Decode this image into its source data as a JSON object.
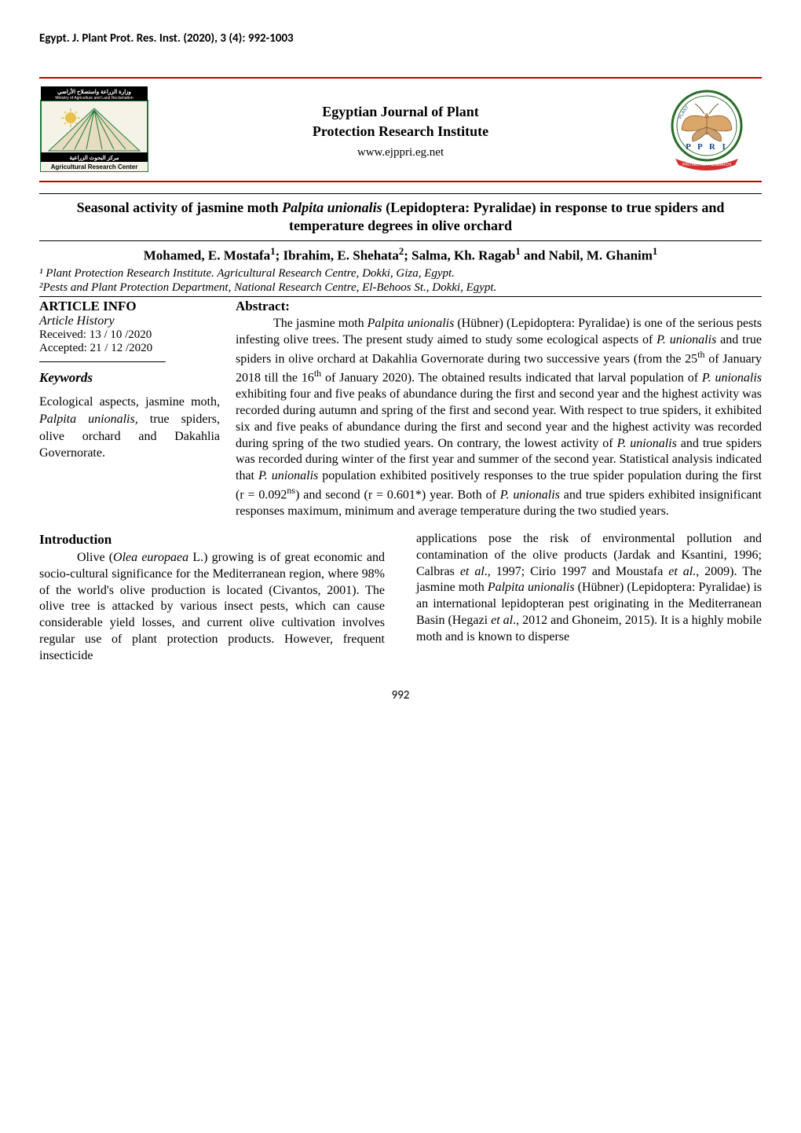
{
  "running_header": "Egypt. J. Plant Prot. Res. Inst. (2020), 3 (4): 992-1003",
  "banner": {
    "journal_title": "Egyptian Journal of Plant",
    "journal_subtitle": "Protection Research Institute",
    "url": "www.ejppri.eg.net",
    "left_logo": {
      "name": "arc-ministry-logo",
      "top_text_ar": "وزارة الزراعة واستصلاح الأراضي",
      "top_text_en": "Ministry of Agriculture and Land Reclamation",
      "mid_text_ar": "مركز البحوث الزراعية",
      "bottom_text": "Agricultural Research Center",
      "bg_color": "#f5f2e8",
      "border_color": "#1a7a3a"
    },
    "right_logo": {
      "name": "ppri-seal",
      "letters": "P P R I",
      "wing_color": "#d9a76a",
      "body_color": "#c98f4f",
      "ring_color": "#2a6b2a",
      "banner_color": "#d03030",
      "banner_text": "PLANT PROTECTION RESEARCH"
    },
    "rule_color": "#c00000"
  },
  "paper": {
    "title_html": "Seasonal activity of jasmine moth <span class=\"ital\">Palpita unionalis</span> (Lepidoptera: Pyralidae) in response to true spiders and temperature degrees in olive orchard",
    "authors_html": "Mohamed, E. Mostafa<sup>1</sup>; Ibrahim, E. Shehata<sup>2</sup>; Salma, Kh. Ragab<sup>1</sup> and Nabil, M. Ghanim<sup>1</sup>",
    "affiliations": [
      "¹ Plant Protection Research Institute. Agricultural Research Centre, Dokki, Giza, Egypt.",
      "²Pests and Plant Protection Department, National Research Centre, El-Behoos St., Dokki, Egypt."
    ]
  },
  "article_info": {
    "heading": "ARTICLE INFO",
    "history_label": "Article History",
    "received": "Received: 13  / 10  /2020",
    "accepted": "Accepted:  21 / 12  /2020"
  },
  "keywords": {
    "heading": "Keywords",
    "body_html": "Ecological aspects, jasmine moth, <span class=\"ital\">Palpita unionalis,</span> true spiders, olive orchard and Dakahlia Governorate."
  },
  "abstract": {
    "heading": "Abstract:",
    "body_html": "<span class=\"indent\"></span>The jasmine moth <span class=\"ital\">Palpita unionalis</span> (Hübner) (Lepidoptera: Pyralidae) is one of the serious pests infesting olive trees. The present study aimed to study some ecological aspects of <span class=\"ital\">P. unionalis</span> and true spiders in olive orchard at Dakahlia Governorate during two successive years (from the 25<sup>th</sup> of January 2018 till the 16<sup>th</sup> of January 2020). The obtained results indicated that larval population of <span class=\"ital\">P. unionalis</span> exhibiting four and five peaks of abundance during the first and second year and the highest activity was recorded during autumn and spring of the first and second year. With respect to true spiders, it exhibited six and five peaks of abundance during the first and second year and the highest activity was recorded during spring of the two studied years. On contrary, the lowest activity of <span class=\"ital\">P. unionalis</span> and true spiders was recorded during winter of the first year and summer of the second year. Statistical analysis indicated that <span class=\"ital\">P. unionalis</span> population exhibited positively responses to the true spider population during the first (r = 0.092<sup>ns</sup>) and second (r = 0.601*) year. Both of <span class=\"ital\">P. unionalis</span> and true spiders exhibited insignificant responses maximum, minimum and average temperature during the two studied years."
  },
  "introduction": {
    "heading": "Introduction",
    "col1_html": "<span class=\"indent\"></span>Olive (<span class=\"ital\">Olea europaea</span> L.) growing is of great economic and socio-cultural significance for the Mediterranean region, where 98% of the world's olive production is located (Civantos, 2001). The olive tree is attacked by various insect pests, which can cause considerable yield losses, and current olive cultivation involves regular use of plant protection products. However, frequent insecticide",
    "col2_html": "applications pose the risk of environmental pollution and contamination of the olive products (Jardak and Ksantini, 1996; Calbras <span class=\"ital\">et al</span>., 1997; Cirio 1997 and Moustafa <span class=\"ital\">et al.</span>, 2009). The jasmine moth <span class=\"ital\">Palpita unionalis</span> (Hübner) (Lepidoptera: Pyralidae) is an international lepidopteran pest originating in the Mediterranean Basin (Hegazi <span class=\"ital\">et al</span>., 2012 and Ghoneim, 2015). It is a highly mobile moth and is known to disperse"
  },
  "page_number": "992",
  "style": {
    "body_font": "Times New Roman",
    "header_font": "Calibri",
    "base_fontsize_pt": 12,
    "title_fontsize_pt": 13.5,
    "background": "#ffffff",
    "text_color": "#000000"
  }
}
